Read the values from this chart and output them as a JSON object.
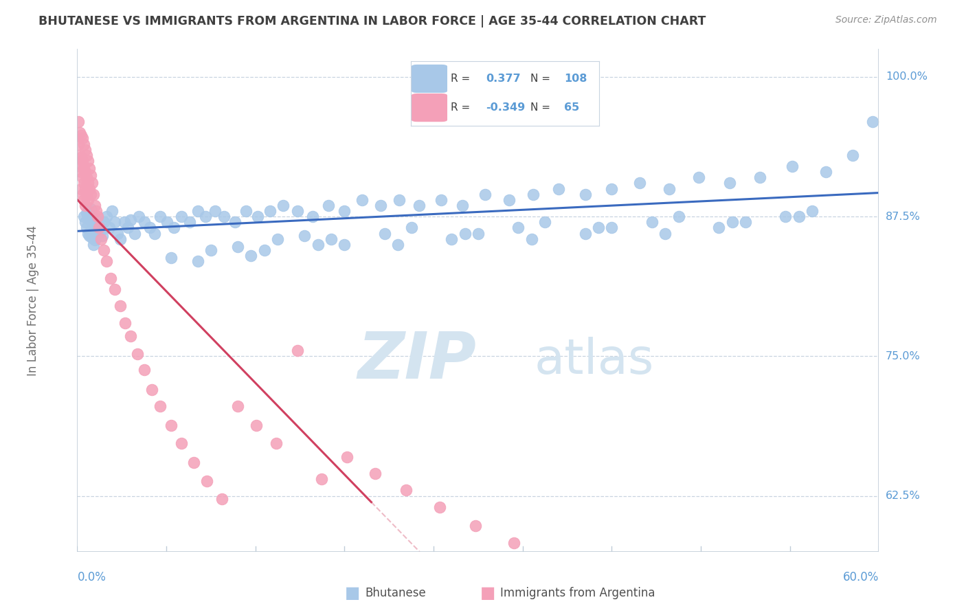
{
  "title": "BHUTANESE VS IMMIGRANTS FROM ARGENTINA IN LABOR FORCE | AGE 35-44 CORRELATION CHART",
  "source": "Source: ZipAtlas.com",
  "ylabel": "In Labor Force | Age 35-44",
  "xlim": [
    0.0,
    0.6
  ],
  "ylim": [
    0.575,
    1.025
  ],
  "blue_R": 0.377,
  "blue_N": 108,
  "pink_R": -0.349,
  "pink_N": 65,
  "blue_color": "#a8c8e8",
  "pink_color": "#f4a0b8",
  "blue_line_color": "#3a6abf",
  "pink_line_color": "#d04060",
  "grid_color": "#c8d4e0",
  "title_color": "#404040",
  "source_color": "#909090",
  "axis_label_color": "#5b9bd5",
  "watermark_color": "#d4e4f0",
  "right_ytick_vals": [
    0.625,
    0.75,
    0.875,
    1.0
  ],
  "right_ytick_labels": [
    "62.5%",
    "75.0%",
    "87.5%",
    "100.0%"
  ],
  "blue_x": [
    0.005,
    0.006,
    0.007,
    0.007,
    0.008,
    0.008,
    0.009,
    0.009,
    0.01,
    0.01,
    0.011,
    0.011,
    0.012,
    0.012,
    0.013,
    0.013,
    0.014,
    0.015,
    0.016,
    0.017,
    0.018,
    0.019,
    0.02,
    0.022,
    0.024,
    0.026,
    0.028,
    0.03,
    0.032,
    0.035,
    0.038,
    0.04,
    0.043,
    0.046,
    0.05,
    0.054,
    0.058,
    0.062,
    0.067,
    0.072,
    0.078,
    0.084,
    0.09,
    0.096,
    0.103,
    0.11,
    0.118,
    0.126,
    0.135,
    0.144,
    0.154,
    0.165,
    0.176,
    0.188,
    0.2,
    0.213,
    0.227,
    0.241,
    0.256,
    0.272,
    0.288,
    0.305,
    0.323,
    0.341,
    0.36,
    0.38,
    0.4,
    0.421,
    0.443,
    0.465,
    0.488,
    0.511,
    0.535,
    0.56,
    0.58,
    0.595,
    0.1,
    0.15,
    0.2,
    0.25,
    0.3,
    0.35,
    0.4,
    0.45,
    0.5,
    0.55,
    0.13,
    0.18,
    0.23,
    0.28,
    0.33,
    0.38,
    0.43,
    0.48,
    0.53,
    0.09,
    0.14,
    0.19,
    0.24,
    0.29,
    0.34,
    0.39,
    0.44,
    0.49,
    0.54,
    0.07,
    0.12,
    0.17
  ],
  "blue_y": [
    0.875,
    0.87,
    0.878,
    0.865,
    0.88,
    0.86,
    0.873,
    0.858,
    0.882,
    0.862,
    0.876,
    0.856,
    0.87,
    0.85,
    0.874,
    0.854,
    0.868,
    0.864,
    0.86,
    0.866,
    0.862,
    0.858,
    0.87,
    0.875,
    0.865,
    0.88,
    0.87,
    0.86,
    0.855,
    0.87,
    0.865,
    0.872,
    0.86,
    0.875,
    0.87,
    0.865,
    0.86,
    0.875,
    0.87,
    0.865,
    0.875,
    0.87,
    0.88,
    0.875,
    0.88,
    0.875,
    0.87,
    0.88,
    0.875,
    0.88,
    0.885,
    0.88,
    0.875,
    0.885,
    0.88,
    0.89,
    0.885,
    0.89,
    0.885,
    0.89,
    0.885,
    0.895,
    0.89,
    0.895,
    0.9,
    0.895,
    0.9,
    0.905,
    0.9,
    0.91,
    0.905,
    0.91,
    0.92,
    0.915,
    0.93,
    0.96,
    0.845,
    0.855,
    0.85,
    0.865,
    0.86,
    0.87,
    0.865,
    0.875,
    0.87,
    0.88,
    0.84,
    0.85,
    0.86,
    0.855,
    0.865,
    0.86,
    0.87,
    0.865,
    0.875,
    0.835,
    0.845,
    0.855,
    0.85,
    0.86,
    0.855,
    0.865,
    0.86,
    0.87,
    0.875,
    0.838,
    0.848,
    0.858
  ],
  "pink_x": [
    0.001,
    0.001,
    0.002,
    0.002,
    0.002,
    0.003,
    0.003,
    0.003,
    0.003,
    0.004,
    0.004,
    0.004,
    0.004,
    0.005,
    0.005,
    0.005,
    0.005,
    0.006,
    0.006,
    0.006,
    0.006,
    0.007,
    0.007,
    0.007,
    0.008,
    0.008,
    0.008,
    0.009,
    0.009,
    0.01,
    0.01,
    0.011,
    0.012,
    0.013,
    0.014,
    0.015,
    0.016,
    0.018,
    0.02,
    0.022,
    0.025,
    0.028,
    0.032,
    0.036,
    0.04,
    0.045,
    0.05,
    0.056,
    0.062,
    0.07,
    0.078,
    0.087,
    0.097,
    0.108,
    0.12,
    0.134,
    0.149,
    0.165,
    0.183,
    0.202,
    0.223,
    0.246,
    0.271,
    0.298,
    0.327
  ],
  "pink_y": [
    0.96,
    0.94,
    0.95,
    0.93,
    0.92,
    0.948,
    0.928,
    0.915,
    0.9,
    0.945,
    0.925,
    0.91,
    0.895,
    0.94,
    0.92,
    0.905,
    0.89,
    0.935,
    0.915,
    0.9,
    0.885,
    0.93,
    0.91,
    0.895,
    0.925,
    0.905,
    0.89,
    0.918,
    0.9,
    0.912,
    0.895,
    0.905,
    0.895,
    0.885,
    0.88,
    0.875,
    0.865,
    0.855,
    0.845,
    0.835,
    0.82,
    0.81,
    0.795,
    0.78,
    0.768,
    0.752,
    0.738,
    0.72,
    0.705,
    0.688,
    0.672,
    0.655,
    0.638,
    0.622,
    0.705,
    0.688,
    0.672,
    0.755,
    0.64,
    0.66,
    0.645,
    0.63,
    0.615,
    0.598,
    0.583
  ]
}
